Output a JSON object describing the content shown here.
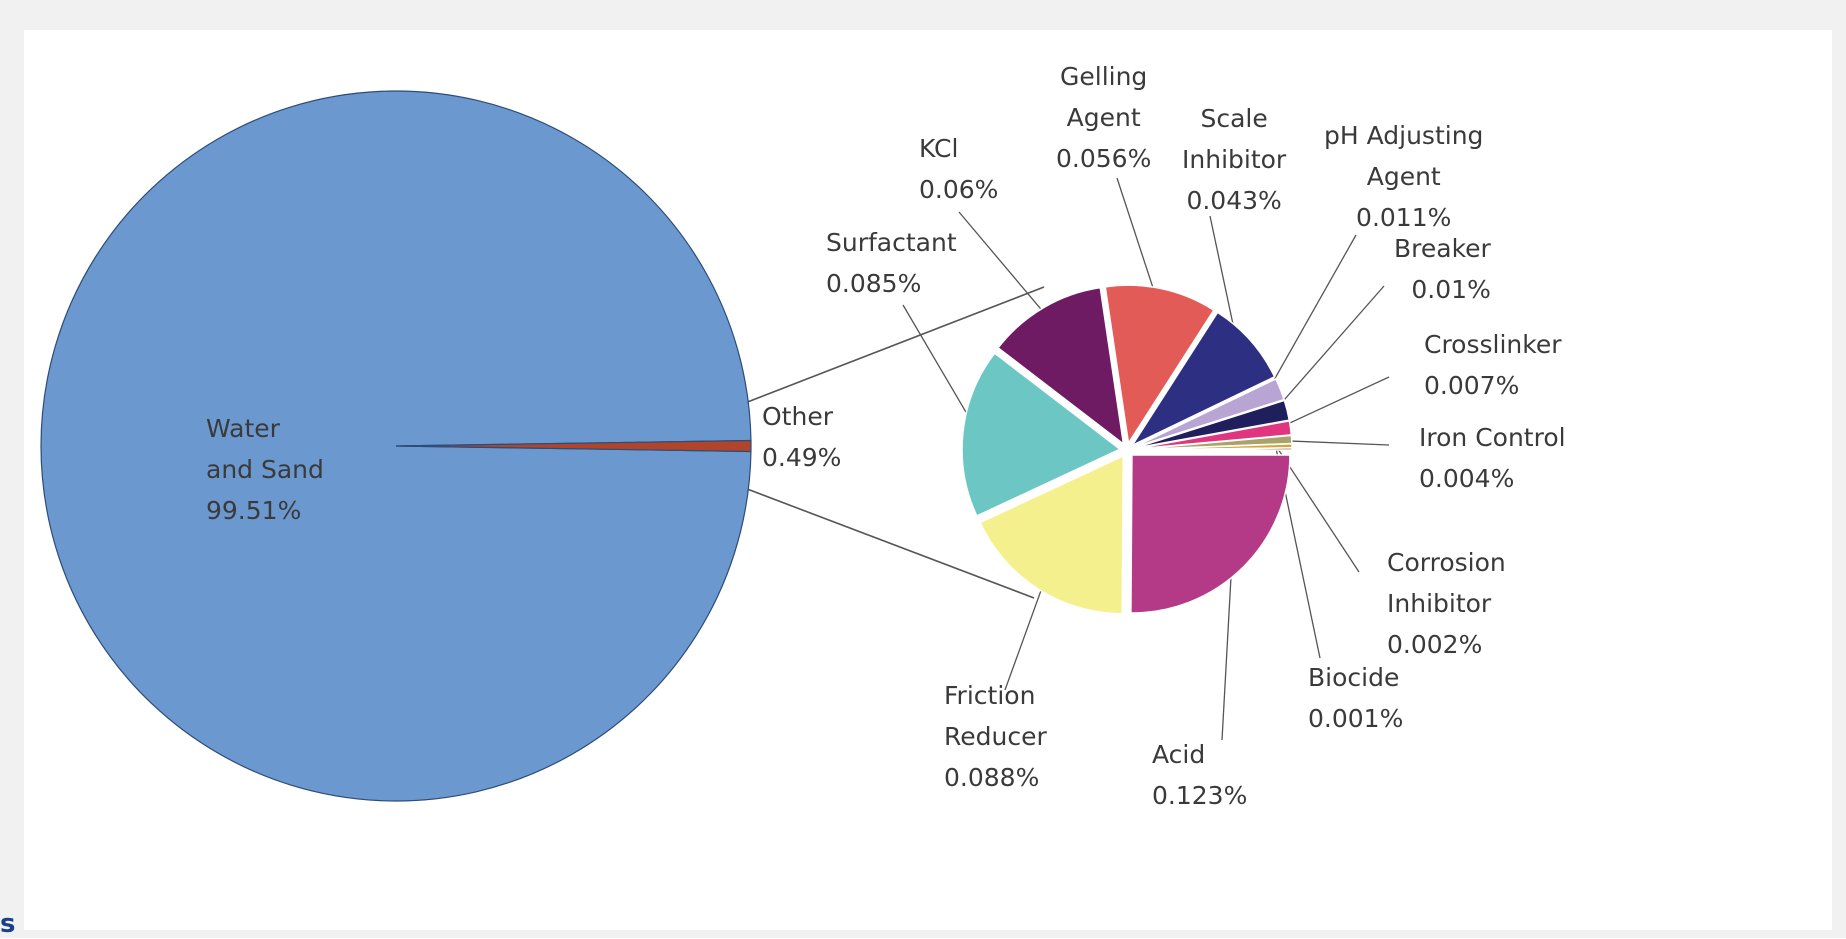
{
  "page": {
    "fragment_text": "s"
  },
  "chart_data": [
    {
      "type": "pie",
      "title": "",
      "slices": [
        {
          "label_lines": [
            "Water",
            "and Sand",
            "99.51%"
          ],
          "value": 99.51,
          "color": "#6b98cf"
        },
        {
          "label_lines": [
            "Other",
            "0.49%"
          ],
          "value": 0.49,
          "color": "#b0452b"
        }
      ]
    },
    {
      "type": "pie",
      "title": "",
      "breakdown_of": "Other",
      "slices": [
        {
          "label_lines": [
            "Acid",
            "0.123%"
          ],
          "value": 0.123,
          "color": "#b43a87"
        },
        {
          "label_lines": [
            "Friction",
            "Reducer",
            "0.088%"
          ],
          "value": 0.088,
          "color": "#f5f08e"
        },
        {
          "label_lines": [
            "Surfactant",
            "0.085%"
          ],
          "value": 0.085,
          "color": "#6cc7c4"
        },
        {
          "label_lines": [
            "KCl",
            "0.06%"
          ],
          "value": 0.06,
          "color": "#6e1b63"
        },
        {
          "label_lines": [
            "Gelling",
            "Agent",
            "0.056%"
          ],
          "value": 0.056,
          "color": "#e35b56"
        },
        {
          "label_lines": [
            "Scale",
            "Inhibitor",
            "0.043%"
          ],
          "value": 0.043,
          "color": "#2c2f82"
        },
        {
          "label_lines": [
            "pH Adjusting",
            "Agent",
            "0.011%"
          ],
          "value": 0.011,
          "color": "#b9a5d4"
        },
        {
          "label_lines": [
            "Breaker",
            "0.01%"
          ],
          "value": 0.01,
          "color": "#1f1f5e"
        },
        {
          "label_lines": [
            "Crosslinker",
            "0.007%"
          ],
          "value": 0.007,
          "color": "#e0357f"
        },
        {
          "label_lines": [
            "Iron Control",
            "0.004%"
          ],
          "value": 0.004,
          "color": "#a8a36a"
        },
        {
          "label_lines": [
            "Corrosion",
            "Inhibitor",
            "0.002%"
          ],
          "value": 0.002,
          "color": "#d9a23a"
        },
        {
          "label_lines": [
            "Biocide",
            "0.001%"
          ],
          "value": 0.001,
          "color": "#7a3b1a"
        }
      ]
    }
  ]
}
